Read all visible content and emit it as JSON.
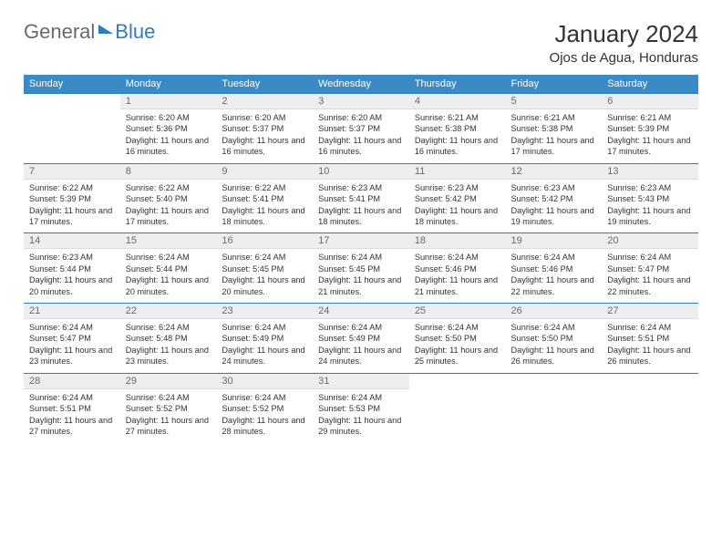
{
  "logo": {
    "general": "General",
    "blue": "Blue"
  },
  "header": {
    "title": "January 2024",
    "location": "Ojos de Agua, Honduras"
  },
  "colors": {
    "header_bar": "#3a8ac6",
    "header_text": "#ffffff",
    "border": "#2f7bbf",
    "daynum_bg": "#eceeef",
    "daynum_text": "#6a6a6a",
    "body_text": "#333333",
    "background": "#ffffff",
    "logo_gray": "#6a6a6a",
    "logo_blue": "#2f7bbf"
  },
  "fonts": {
    "title_size": 26,
    "location_size": 15,
    "dow_size": 11,
    "daynum_size": 11,
    "body_size": 9.2
  },
  "days_of_week": [
    "Sunday",
    "Monday",
    "Tuesday",
    "Wednesday",
    "Thursday",
    "Friday",
    "Saturday"
  ],
  "weeks": [
    [
      {
        "num": "",
        "sunrise": "",
        "sunset": "",
        "daylight": ""
      },
      {
        "num": "1",
        "sunrise": "Sunrise: 6:20 AM",
        "sunset": "Sunset: 5:36 PM",
        "daylight": "Daylight: 11 hours and 16 minutes."
      },
      {
        "num": "2",
        "sunrise": "Sunrise: 6:20 AM",
        "sunset": "Sunset: 5:37 PM",
        "daylight": "Daylight: 11 hours and 16 minutes."
      },
      {
        "num": "3",
        "sunrise": "Sunrise: 6:20 AM",
        "sunset": "Sunset: 5:37 PM",
        "daylight": "Daylight: 11 hours and 16 minutes."
      },
      {
        "num": "4",
        "sunrise": "Sunrise: 6:21 AM",
        "sunset": "Sunset: 5:38 PM",
        "daylight": "Daylight: 11 hours and 16 minutes."
      },
      {
        "num": "5",
        "sunrise": "Sunrise: 6:21 AM",
        "sunset": "Sunset: 5:38 PM",
        "daylight": "Daylight: 11 hours and 17 minutes."
      },
      {
        "num": "6",
        "sunrise": "Sunrise: 6:21 AM",
        "sunset": "Sunset: 5:39 PM",
        "daylight": "Daylight: 11 hours and 17 minutes."
      }
    ],
    [
      {
        "num": "7",
        "sunrise": "Sunrise: 6:22 AM",
        "sunset": "Sunset: 5:39 PM",
        "daylight": "Daylight: 11 hours and 17 minutes."
      },
      {
        "num": "8",
        "sunrise": "Sunrise: 6:22 AM",
        "sunset": "Sunset: 5:40 PM",
        "daylight": "Daylight: 11 hours and 17 minutes."
      },
      {
        "num": "9",
        "sunrise": "Sunrise: 6:22 AM",
        "sunset": "Sunset: 5:41 PM",
        "daylight": "Daylight: 11 hours and 18 minutes."
      },
      {
        "num": "10",
        "sunrise": "Sunrise: 6:23 AM",
        "sunset": "Sunset: 5:41 PM",
        "daylight": "Daylight: 11 hours and 18 minutes."
      },
      {
        "num": "11",
        "sunrise": "Sunrise: 6:23 AM",
        "sunset": "Sunset: 5:42 PM",
        "daylight": "Daylight: 11 hours and 18 minutes."
      },
      {
        "num": "12",
        "sunrise": "Sunrise: 6:23 AM",
        "sunset": "Sunset: 5:42 PM",
        "daylight": "Daylight: 11 hours and 19 minutes."
      },
      {
        "num": "13",
        "sunrise": "Sunrise: 6:23 AM",
        "sunset": "Sunset: 5:43 PM",
        "daylight": "Daylight: 11 hours and 19 minutes."
      }
    ],
    [
      {
        "num": "14",
        "sunrise": "Sunrise: 6:23 AM",
        "sunset": "Sunset: 5:44 PM",
        "daylight": "Daylight: 11 hours and 20 minutes."
      },
      {
        "num": "15",
        "sunrise": "Sunrise: 6:24 AM",
        "sunset": "Sunset: 5:44 PM",
        "daylight": "Daylight: 11 hours and 20 minutes."
      },
      {
        "num": "16",
        "sunrise": "Sunrise: 6:24 AM",
        "sunset": "Sunset: 5:45 PM",
        "daylight": "Daylight: 11 hours and 20 minutes."
      },
      {
        "num": "17",
        "sunrise": "Sunrise: 6:24 AM",
        "sunset": "Sunset: 5:45 PM",
        "daylight": "Daylight: 11 hours and 21 minutes."
      },
      {
        "num": "18",
        "sunrise": "Sunrise: 6:24 AM",
        "sunset": "Sunset: 5:46 PM",
        "daylight": "Daylight: 11 hours and 21 minutes."
      },
      {
        "num": "19",
        "sunrise": "Sunrise: 6:24 AM",
        "sunset": "Sunset: 5:46 PM",
        "daylight": "Daylight: 11 hours and 22 minutes."
      },
      {
        "num": "20",
        "sunrise": "Sunrise: 6:24 AM",
        "sunset": "Sunset: 5:47 PM",
        "daylight": "Daylight: 11 hours and 22 minutes."
      }
    ],
    [
      {
        "num": "21",
        "sunrise": "Sunrise: 6:24 AM",
        "sunset": "Sunset: 5:47 PM",
        "daylight": "Daylight: 11 hours and 23 minutes."
      },
      {
        "num": "22",
        "sunrise": "Sunrise: 6:24 AM",
        "sunset": "Sunset: 5:48 PM",
        "daylight": "Daylight: 11 hours and 23 minutes."
      },
      {
        "num": "23",
        "sunrise": "Sunrise: 6:24 AM",
        "sunset": "Sunset: 5:49 PM",
        "daylight": "Daylight: 11 hours and 24 minutes."
      },
      {
        "num": "24",
        "sunrise": "Sunrise: 6:24 AM",
        "sunset": "Sunset: 5:49 PM",
        "daylight": "Daylight: 11 hours and 24 minutes."
      },
      {
        "num": "25",
        "sunrise": "Sunrise: 6:24 AM",
        "sunset": "Sunset: 5:50 PM",
        "daylight": "Daylight: 11 hours and 25 minutes."
      },
      {
        "num": "26",
        "sunrise": "Sunrise: 6:24 AM",
        "sunset": "Sunset: 5:50 PM",
        "daylight": "Daylight: 11 hours and 26 minutes."
      },
      {
        "num": "27",
        "sunrise": "Sunrise: 6:24 AM",
        "sunset": "Sunset: 5:51 PM",
        "daylight": "Daylight: 11 hours and 26 minutes."
      }
    ],
    [
      {
        "num": "28",
        "sunrise": "Sunrise: 6:24 AM",
        "sunset": "Sunset: 5:51 PM",
        "daylight": "Daylight: 11 hours and 27 minutes."
      },
      {
        "num": "29",
        "sunrise": "Sunrise: 6:24 AM",
        "sunset": "Sunset: 5:52 PM",
        "daylight": "Daylight: 11 hours and 27 minutes."
      },
      {
        "num": "30",
        "sunrise": "Sunrise: 6:24 AM",
        "sunset": "Sunset: 5:52 PM",
        "daylight": "Daylight: 11 hours and 28 minutes."
      },
      {
        "num": "31",
        "sunrise": "Sunrise: 6:24 AM",
        "sunset": "Sunset: 5:53 PM",
        "daylight": "Daylight: 11 hours and 29 minutes."
      },
      {
        "num": "",
        "sunrise": "",
        "sunset": "",
        "daylight": ""
      },
      {
        "num": "",
        "sunrise": "",
        "sunset": "",
        "daylight": ""
      },
      {
        "num": "",
        "sunrise": "",
        "sunset": "",
        "daylight": ""
      }
    ]
  ]
}
